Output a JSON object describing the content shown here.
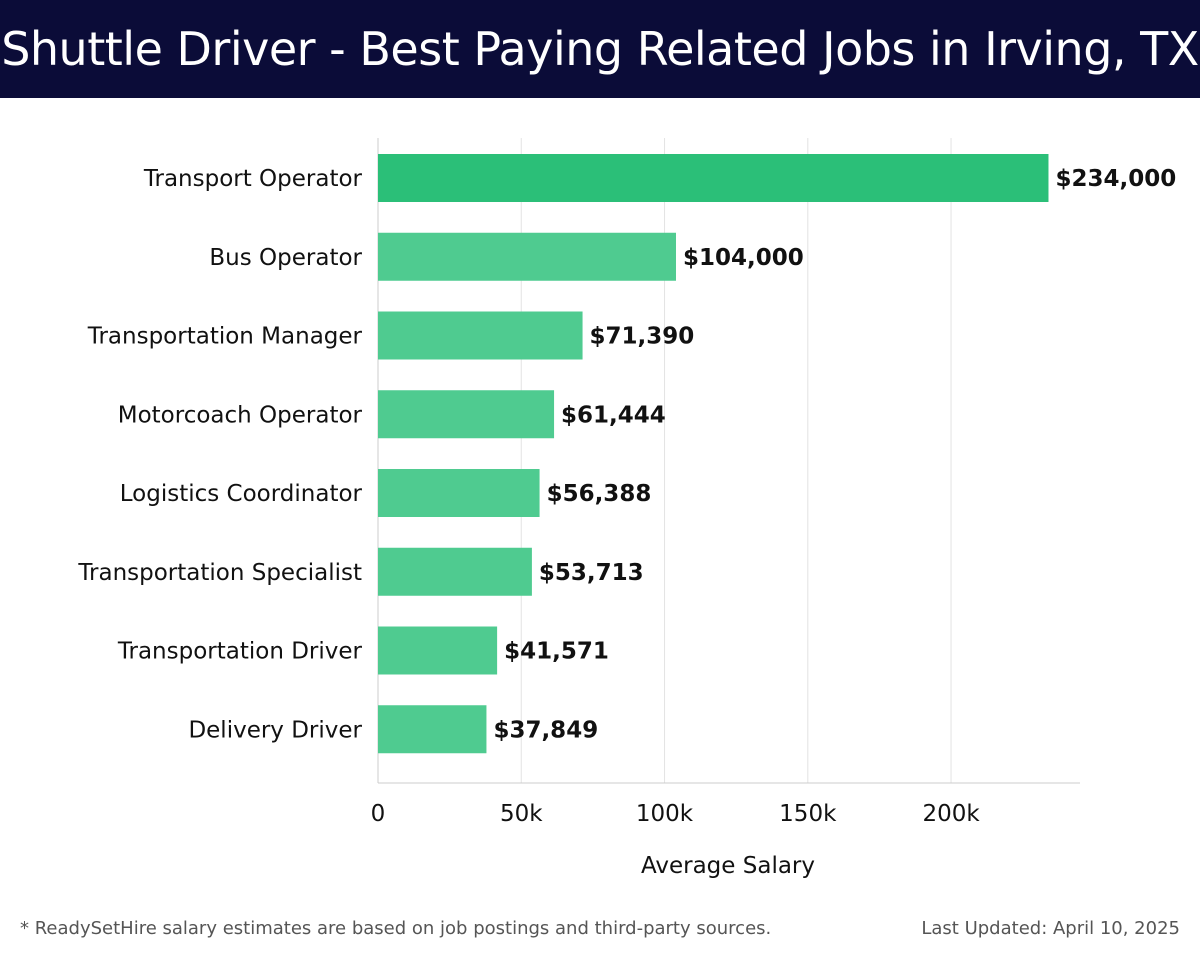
{
  "header": {
    "title": "Shuttle Driver - Best Paying Related Jobs in Irving, TX"
  },
  "chart_data": {
    "type": "bar",
    "orientation": "horizontal",
    "title": "Shuttle Driver - Best Paying Related Jobs in Irving, TX",
    "xlabel": "Average Salary",
    "ylabel": "",
    "xlim": [
      0,
      245000
    ],
    "grid": true,
    "x_ticks": [
      0,
      50000,
      100000,
      150000,
      200000
    ],
    "x_tick_labels": [
      "0",
      "50k",
      "100k",
      "150k",
      "200k"
    ],
    "categories": [
      "Transport Operator",
      "Bus Operator",
      "Transportation Manager",
      "Motorcoach Operator",
      "Logistics Coordinator",
      "Transportation Specialist",
      "Transportation Driver",
      "Delivery Driver"
    ],
    "values": [
      234000,
      104000,
      71390,
      61444,
      56388,
      53713,
      41571,
      37849
    ],
    "value_labels": [
      "$234,000",
      "$104,000",
      "$71,390",
      "$61,444",
      "$56,388",
      "$53,713",
      "$41,571",
      "$37,849"
    ],
    "colors": {
      "top_bar": "#2bbf78",
      "other_bars": "#4fcb90",
      "grid": "#e3e3e3",
      "axis": "#cccccc",
      "header_bg": "#0b0c38"
    }
  },
  "footer": {
    "note": "* ReadySetHire salary estimates are based on job postings and third-party sources.",
    "updated": "Last Updated: April 10, 2025"
  }
}
